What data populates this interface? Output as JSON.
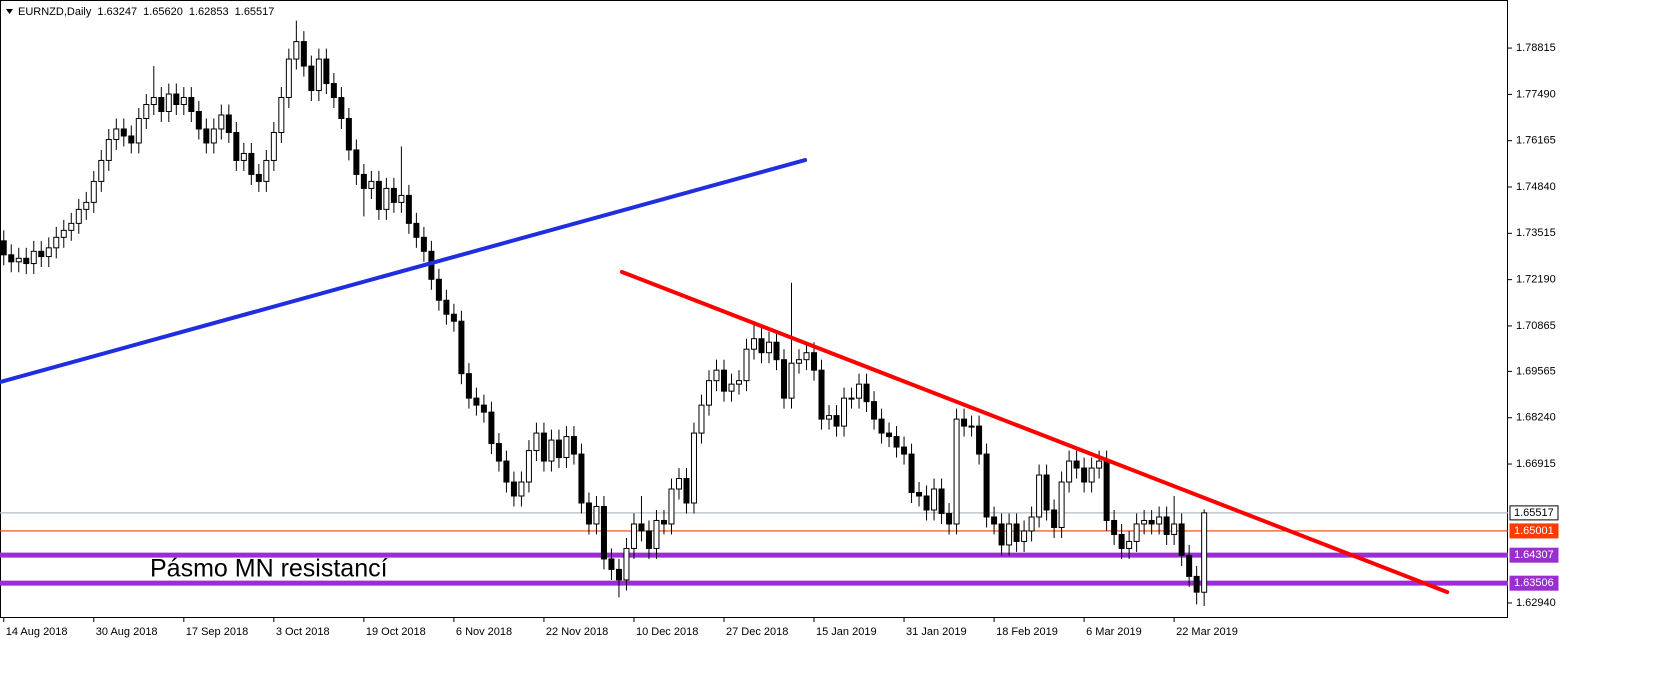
{
  "chart_data": {
    "type": "candlestick",
    "header": {
      "symbol": "EURNZD,Daily",
      "ohlc": [
        1.63247,
        {
          "value": 1.6562,
          "label": "1.65620"
        },
        1.62853,
        1.65517
      ]
    },
    "annotation": "Pásmo MN resistancí",
    "bull_color": "#ffffff",
    "bear_color": "#000000",
    "outline_color": "#000000",
    "xlim": [
      -0.5,
      200.5
    ],
    "ylim": [
      1.6251,
      1.8019
    ],
    "xticks": [
      {
        "value": 0,
        "label": "14 Aug 2018"
      },
      {
        "value": 12,
        "label": "30 Aug 2018"
      },
      {
        "value": 24,
        "label": "17 Sep 2018"
      },
      {
        "value": 36,
        "label": "3 Oct 2018"
      },
      {
        "value": 48,
        "label": "19 Oct 2018"
      },
      {
        "value": 60,
        "label": "6 Nov 2018"
      },
      {
        "value": 72,
        "label": "22 Nov 2018"
      },
      {
        "value": 84,
        "label": "10 Dec 2018"
      },
      {
        "value": 96,
        "label": "27 Dec 2018"
      },
      {
        "value": 108,
        "label": "15 Jan 2019"
      },
      {
        "value": 120,
        "label": "31 Jan 2019"
      },
      {
        "value": 132,
        "label": "18 Feb 2019"
      },
      {
        "value": 144,
        "label": "6 Mar 2019"
      },
      {
        "value": 156,
        "label": "22 Mar 2019"
      }
    ],
    "yticks": [
      {
        "value": 1.6294,
        "label": "1.62940"
      },
      1.66915,
      {
        "value": 1.6824,
        "label": "1.68240"
      },
      1.69565,
      1.70865,
      {
        "value": 1.7219,
        "label": "1.72190"
      },
      1.73515,
      {
        "value": 1.7484,
        "label": "1.74840"
      },
      1.76165,
      {
        "value": 1.7749,
        "label": "1.77490"
      },
      1.78815
    ],
    "levels": [
      {
        "value": 1.65517,
        "color": "#b4bcc4",
        "thick": false
      },
      {
        "value": 1.65001,
        "color": "#ff3c00",
        "thick": false
      },
      {
        "value": 1.64307,
        "color": "#9a2fd0",
        "thick": true
      },
      {
        "value": 1.63506,
        "color": "#9a2fd0",
        "thick": true
      }
    ],
    "trendlines": [
      {
        "color": "#1f2fe0",
        "x": [
          -0.5,
          106.8
        ],
        "y": [
          1.6926,
          1.7561
        ]
      },
      {
        "color": "#ff0000",
        "x": [
          82.4,
          192.4
        ],
        "y": [
          1.7241,
          1.6325
        ]
      }
    ],
    "candles": {
      "open": [
        1.733,
        1.729,
        1.727,
        1.728,
        1.7265,
        1.73,
        1.7285,
        1.731,
        1.734,
        1.736,
        1.738,
        1.742,
        1.744,
        1.75,
        1.756,
        1.762,
        1.765,
        1.763,
        1.761,
        1.768,
        1.772,
        1.774,
        1.77,
        1.775,
        1.772,
        1.774,
        1.77,
        1.765,
        1.761,
        1.765,
        1.769,
        1.764,
        1.756,
        1.758,
        1.752,
        1.75,
        1.756,
        1.764,
        1.774,
        1.785,
        1.79,
        1.783,
        1.776,
        1.785,
        1.778,
        1.774,
        1.768,
        1.759,
        1.752,
        1.748,
        1.75,
        1.742,
        1.748,
        1.744,
        1.746,
        1.738,
        1.734,
        1.73,
        1.722,
        1.716,
        1.712,
        1.71,
        1.695,
        1.688,
        1.686,
        1.684,
        1.675,
        1.67,
        1.664,
        1.66,
        1.664,
        1.673,
        1.678,
        1.67,
        1.676,
        1.671,
        1.677,
        1.672,
        1.658,
        1.652,
        1.657,
        1.642,
        1.639,
        1.636,
        1.645,
        1.652,
        1.65,
        1.645,
        1.653,
        1.652,
        1.662,
        1.665,
        1.658,
        1.678,
        1.686,
        1.693,
        1.696,
        1.69,
        1.692,
        1.693,
        1.702,
        1.705,
        1.701,
        1.704,
        1.699,
        1.688,
        1.698,
        1.699,
        1.701,
        1.696,
        1.682,
        1.683,
        1.68,
        1.688,
        1.688,
        1.692,
        1.687,
        1.682,
        1.678,
        1.677,
        1.674,
        1.672,
        1.661,
        1.66,
        1.656,
        1.662,
        1.655,
        1.652,
        1.682,
        1.68,
        1.68,
        1.672,
        1.654,
        1.652,
        1.646,
        1.652,
        1.647,
        1.65,
        1.654,
        1.666,
        1.656,
        1.651,
        1.664,
        1.67,
        1.668,
        1.664,
        1.668,
        1.67,
        1.653,
        1.649,
        1.645,
        1.647,
        1.652,
        1.653,
        1.652,
        1.654,
        1.649,
        1.652,
        1.643,
        1.637,
        1.63247
      ],
      "high": [
        1.736,
        1.732,
        1.731,
        1.731,
        1.733,
        1.733,
        1.734,
        1.737,
        1.739,
        1.741,
        1.745,
        1.747,
        1.753,
        1.759,
        1.765,
        1.768,
        1.768,
        1.766,
        1.771,
        1.775,
        1.783,
        1.777,
        1.778,
        1.778,
        1.777,
        1.777,
        1.773,
        1.768,
        1.768,
        1.772,
        1.772,
        1.767,
        1.761,
        1.761,
        1.755,
        1.759,
        1.767,
        1.777,
        1.788,
        1.796,
        1.793,
        1.786,
        1.788,
        1.788,
        1.781,
        1.777,
        1.771,
        1.762,
        1.755,
        1.753,
        1.753,
        1.751,
        1.751,
        1.76,
        1.749,
        1.741,
        1.737,
        1.733,
        1.725,
        1.719,
        1.715,
        1.713,
        1.698,
        1.691,
        1.689,
        1.687,
        1.678,
        1.673,
        1.667,
        1.667,
        1.676,
        1.681,
        1.681,
        1.679,
        1.679,
        1.68,
        1.68,
        1.675,
        1.661,
        1.66,
        1.66,
        1.645,
        1.642,
        1.648,
        1.655,
        1.66,
        1.653,
        1.656,
        1.656,
        1.665,
        1.668,
        1.668,
        1.681,
        1.689,
        1.696,
        1.699,
        1.699,
        1.695,
        1.696,
        1.705,
        1.71,
        1.708,
        1.707,
        1.707,
        1.702,
        1.721,
        1.702,
        1.704,
        1.704,
        1.699,
        1.686,
        1.686,
        1.691,
        1.691,
        1.695,
        1.695,
        1.69,
        1.685,
        1.681,
        1.68,
        1.677,
        1.675,
        1.664,
        1.663,
        1.665,
        1.665,
        1.658,
        1.685,
        1.685,
        1.683,
        1.683,
        1.675,
        1.657,
        1.655,
        1.655,
        1.655,
        1.653,
        1.657,
        1.669,
        1.669,
        1.659,
        1.667,
        1.673,
        1.673,
        1.671,
        1.671,
        1.673,
        1.673,
        1.656,
        1.652,
        1.65,
        1.655,
        1.656,
        1.656,
        1.657,
        1.657,
        1.66,
        1.655,
        1.646,
        1.64,
        1.6562
      ],
      "low": [
        1.726,
        1.724,
        1.724,
        1.7235,
        1.7235,
        1.7255,
        1.7255,
        1.728,
        1.731,
        1.733,
        1.735,
        1.739,
        1.741,
        1.747,
        1.753,
        1.759,
        1.76,
        1.758,
        1.758,
        1.765,
        1.769,
        1.767,
        1.767,
        1.769,
        1.769,
        1.767,
        1.762,
        1.758,
        1.758,
        1.762,
        1.761,
        1.753,
        1.753,
        1.749,
        1.747,
        1.747,
        1.753,
        1.761,
        1.771,
        1.782,
        1.78,
        1.773,
        1.773,
        1.775,
        1.771,
        1.765,
        1.756,
        1.749,
        1.74,
        1.745,
        1.739,
        1.739,
        1.741,
        1.741,
        1.735,
        1.731,
        1.727,
        1.719,
        1.713,
        1.709,
        1.707,
        1.692,
        1.685,
        1.683,
        1.681,
        1.672,
        1.667,
        1.661,
        1.657,
        1.657,
        1.661,
        1.67,
        1.667,
        1.667,
        1.668,
        1.668,
        1.669,
        1.655,
        1.649,
        1.649,
        1.639,
        1.636,
        1.631,
        1.633,
        1.642,
        1.647,
        1.642,
        1.642,
        1.649,
        1.649,
        1.659,
        1.655,
        1.655,
        1.675,
        1.683,
        1.69,
        1.687,
        1.687,
        1.689,
        1.69,
        1.699,
        1.698,
        1.698,
        1.696,
        1.685,
        1.685,
        1.695,
        1.696,
        1.693,
        1.679,
        1.679,
        1.677,
        1.677,
        1.685,
        1.685,
        1.684,
        1.679,
        1.675,
        1.674,
        1.671,
        1.669,
        1.658,
        1.657,
        1.653,
        1.653,
        1.652,
        1.649,
        1.649,
        1.677,
        1.677,
        1.669,
        1.651,
        1.649,
        1.643,
        1.643,
        1.644,
        1.644,
        1.647,
        1.651,
        1.653,
        1.648,
        1.648,
        1.661,
        1.665,
        1.661,
        1.661,
        1.665,
        1.65,
        1.646,
        1.642,
        1.642,
        1.644,
        1.649,
        1.649,
        1.649,
        1.646,
        1.646,
        1.64,
        1.634,
        1.629,
        1.62853
      ],
      "close": [
        1.729,
        1.727,
        1.728,
        1.7265,
        1.73,
        1.7285,
        1.731,
        1.734,
        1.736,
        1.738,
        1.742,
        1.744,
        1.75,
        1.756,
        1.762,
        1.765,
        1.763,
        1.761,
        1.768,
        1.772,
        1.774,
        1.77,
        1.775,
        1.772,
        1.774,
        1.77,
        1.765,
        1.761,
        1.765,
        1.769,
        1.764,
        1.756,
        1.758,
        1.752,
        1.75,
        1.756,
        1.764,
        1.774,
        1.785,
        1.79,
        1.783,
        1.776,
        1.785,
        1.778,
        1.774,
        1.768,
        1.759,
        1.752,
        1.748,
        1.75,
        1.742,
        1.748,
        1.744,
        1.746,
        1.738,
        1.734,
        1.73,
        1.722,
        1.716,
        1.712,
        1.71,
        1.695,
        1.688,
        1.686,
        1.684,
        1.675,
        1.67,
        1.664,
        1.66,
        1.664,
        1.673,
        1.678,
        1.67,
        1.676,
        1.671,
        1.677,
        1.672,
        1.658,
        1.652,
        1.657,
        1.642,
        1.639,
        1.636,
        1.645,
        1.652,
        1.65,
        1.645,
        1.653,
        1.652,
        1.662,
        1.665,
        1.658,
        1.678,
        1.686,
        1.693,
        1.696,
        1.69,
        1.692,
        1.693,
        1.702,
        1.705,
        1.701,
        1.704,
        1.699,
        1.688,
        1.698,
        1.699,
        1.701,
        1.696,
        1.682,
        1.683,
        1.68,
        1.688,
        1.688,
        1.692,
        1.687,
        1.682,
        1.678,
        1.677,
        1.674,
        1.672,
        1.661,
        1.66,
        1.656,
        1.662,
        1.655,
        1.652,
        1.682,
        1.68,
        1.68,
        1.672,
        1.654,
        1.652,
        1.646,
        1.652,
        1.647,
        1.65,
        1.654,
        1.666,
        1.656,
        1.651,
        1.664,
        1.67,
        1.668,
        1.664,
        1.668,
        1.67,
        1.653,
        1.649,
        1.645,
        1.647,
        1.652,
        1.653,
        1.652,
        1.654,
        1.649,
        1.652,
        1.643,
        1.637,
        1.6325,
        1.65517
      ]
    }
  }
}
